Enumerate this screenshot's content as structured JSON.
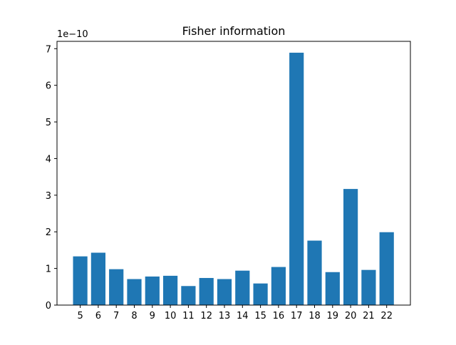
{
  "chart_data": {
    "type": "bar",
    "title": "Fisher information",
    "xlabel": "",
    "ylabel": "",
    "offset_label": "1e−10",
    "scale_exponent": -10,
    "categories": [
      "5",
      "6",
      "7",
      "8",
      "9",
      "10",
      "11",
      "12",
      "13",
      "14",
      "15",
      "16",
      "17",
      "18",
      "19",
      "20",
      "21",
      "22"
    ],
    "values": [
      1.33,
      1.43,
      0.98,
      0.71,
      0.78,
      0.8,
      0.52,
      0.74,
      0.71,
      0.94,
      0.59,
      1.04,
      6.89,
      1.76,
      0.9,
      3.17,
      0.96,
      1.99
    ],
    "yticks": [
      "0",
      "1",
      "2",
      "3",
      "4",
      "5",
      "6",
      "7"
    ],
    "ylim": [
      0,
      7.2
    ],
    "grid": false,
    "bar_color": "#1f77b4"
  }
}
